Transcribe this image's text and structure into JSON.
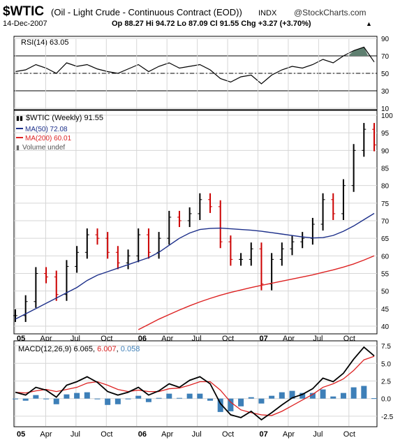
{
  "header": {
    "symbol": "$WTIC",
    "name": "(Oil - Light Crude - Continuous Contract (EOD))",
    "exchange": "INDX",
    "brand": "@StockCharts.com",
    "date": "14-Dec-2007",
    "quote": "Op 88.27  Hi 94.72  Lo 87.09  Cl 91.55  Chg +3.27 (+3.70%)"
  },
  "colors": {
    "up": "#000000",
    "down": "#cc0000",
    "ma50": "#1c2f8a",
    "ma200": "#dd2222",
    "volume": "#666666",
    "macd_line": "#000000",
    "signal": "#dd2222",
    "histogram": "#3d7fb8",
    "rsi_fill": "#5f7f70",
    "grid": "#d6d6d6"
  },
  "x_labels": [
    "05",
    "Apr",
    "Jul",
    "Oct",
    "06",
    "Apr",
    "Jul",
    "Oct",
    "07",
    "Apr",
    "Jul",
    "Oct"
  ],
  "rsi": {
    "label": "RSI(14) 63.05",
    "ticks": [
      "90",
      "70",
      "50",
      "30",
      "10"
    ]
  },
  "price": {
    "label": "$WTIC (Weekly) 91.55",
    "legend_ma50": "MA(50) 72.08",
    "legend_ma200": "MA(200) 60.01",
    "legend_volume": "Volume undef",
    "ticks": [
      "100",
      "95",
      "90",
      "85",
      "80",
      "75",
      "70",
      "65",
      "60",
      "55",
      "50",
      "45",
      "40"
    ]
  },
  "macd": {
    "label_prefix": "MACD(12,26,9)",
    "macd_value": "6.065",
    "signal_value": "6.007",
    "hist_value": "0.058",
    "ticks": [
      "7.5",
      "5.0",
      "2.5",
      "0.0",
      "-2.5"
    ]
  },
  "chart_data": {
    "type": "line",
    "x": [
      "2005-01",
      "2005-02",
      "2005-03",
      "2005-04",
      "2005-05",
      "2005-06",
      "2005-07",
      "2005-08",
      "2005-09",
      "2005-10",
      "2005-11",
      "2005-12",
      "2006-01",
      "2006-02",
      "2006-03",
      "2006-04",
      "2006-05",
      "2006-06",
      "2006-07",
      "2006-08",
      "2006-09",
      "2006-10",
      "2006-11",
      "2006-12",
      "2007-01",
      "2007-02",
      "2007-03",
      "2007-04",
      "2007-05",
      "2007-06",
      "2007-07",
      "2007-08",
      "2007-09",
      "2007-10",
      "2007-11",
      "2007-12"
    ],
    "series": [
      {
        "name": "$WTIC",
        "values": [
          43,
          47,
          55,
          54,
          49,
          57,
          61,
          66,
          65,
          61,
          58,
          60,
          66,
          61,
          65,
          71,
          70,
          72,
          76,
          74,
          64,
          59,
          59,
          62,
          52,
          59,
          62,
          64,
          65,
          69,
          76,
          72,
          80,
          90,
          96,
          91.55
        ]
      },
      {
        "name": "MA(50)",
        "values": [
          42,
          43.5,
          45,
          46.5,
          48,
          49.5,
          51,
          53,
          54.5,
          55.5,
          56.5,
          57.5,
          58.5,
          59.5,
          61,
          63,
          65,
          66.5,
          67.5,
          67.8,
          67.9,
          67.7,
          67.5,
          67.3,
          67,
          66.6,
          66.2,
          65.8,
          65.4,
          65.1,
          65.2,
          65.8,
          67,
          68.5,
          70.3,
          72.08
        ]
      },
      {
        "name": "MA(200)",
        "values": [
          null,
          null,
          null,
          null,
          null,
          null,
          null,
          null,
          null,
          null,
          null,
          null,
          39,
          40.5,
          42,
          43.3,
          44.6,
          45.8,
          46.9,
          47.9,
          48.8,
          49.6,
          50.3,
          51,
          51.6,
          52.2,
          52.8,
          53.4,
          54,
          54.6,
          55.3,
          56,
          56.8,
          57.7,
          58.8,
          60.01
        ]
      },
      {
        "name": "RSI(14)",
        "values": [
          52,
          54,
          60,
          56,
          50,
          62,
          58,
          60,
          55,
          52,
          50,
          55,
          60,
          52,
          58,
          62,
          56,
          58,
          60,
          54,
          44,
          40,
          46,
          48,
          38,
          48,
          54,
          58,
          56,
          60,
          66,
          62,
          70,
          76,
          80,
          63.05
        ]
      },
      {
        "name": "MACD",
        "values": [
          0.9,
          0.5,
          1.6,
          1.2,
          0.2,
          1.9,
          2.4,
          3.1,
          2.3,
          1.0,
          0.5,
          0.9,
          1.6,
          0.5,
          1.1,
          2.1,
          1.6,
          2.6,
          3.1,
          2.1,
          -0.7,
          -2.3,
          -2.7,
          -1.8,
          -3.0,
          -2.0,
          -0.9,
          0.1,
          0.6,
          1.4,
          2.9,
          2.4,
          3.6,
          5.6,
          7.3,
          6.065
        ]
      },
      {
        "name": "Signal",
        "values": [
          0.9,
          0.8,
          1.1,
          1.3,
          1.0,
          1.3,
          1.6,
          2.2,
          2.4,
          1.9,
          1.3,
          1.0,
          1.2,
          1.0,
          1.0,
          1.4,
          1.5,
          1.9,
          2.4,
          2.4,
          1.2,
          -0.5,
          -1.6,
          -2.0,
          -2.3,
          -2.4,
          -1.8,
          -1.0,
          -0.2,
          0.6,
          1.6,
          2.1,
          2.8,
          4.0,
          5.5,
          6.007
        ]
      }
    ],
    "rsi_ylim": [
      10,
      90
    ],
    "price_ylim": [
      40,
      100
    ],
    "macd_ylim": [
      -3.5,
      8
    ],
    "grid": true,
    "legend": "top-left"
  }
}
